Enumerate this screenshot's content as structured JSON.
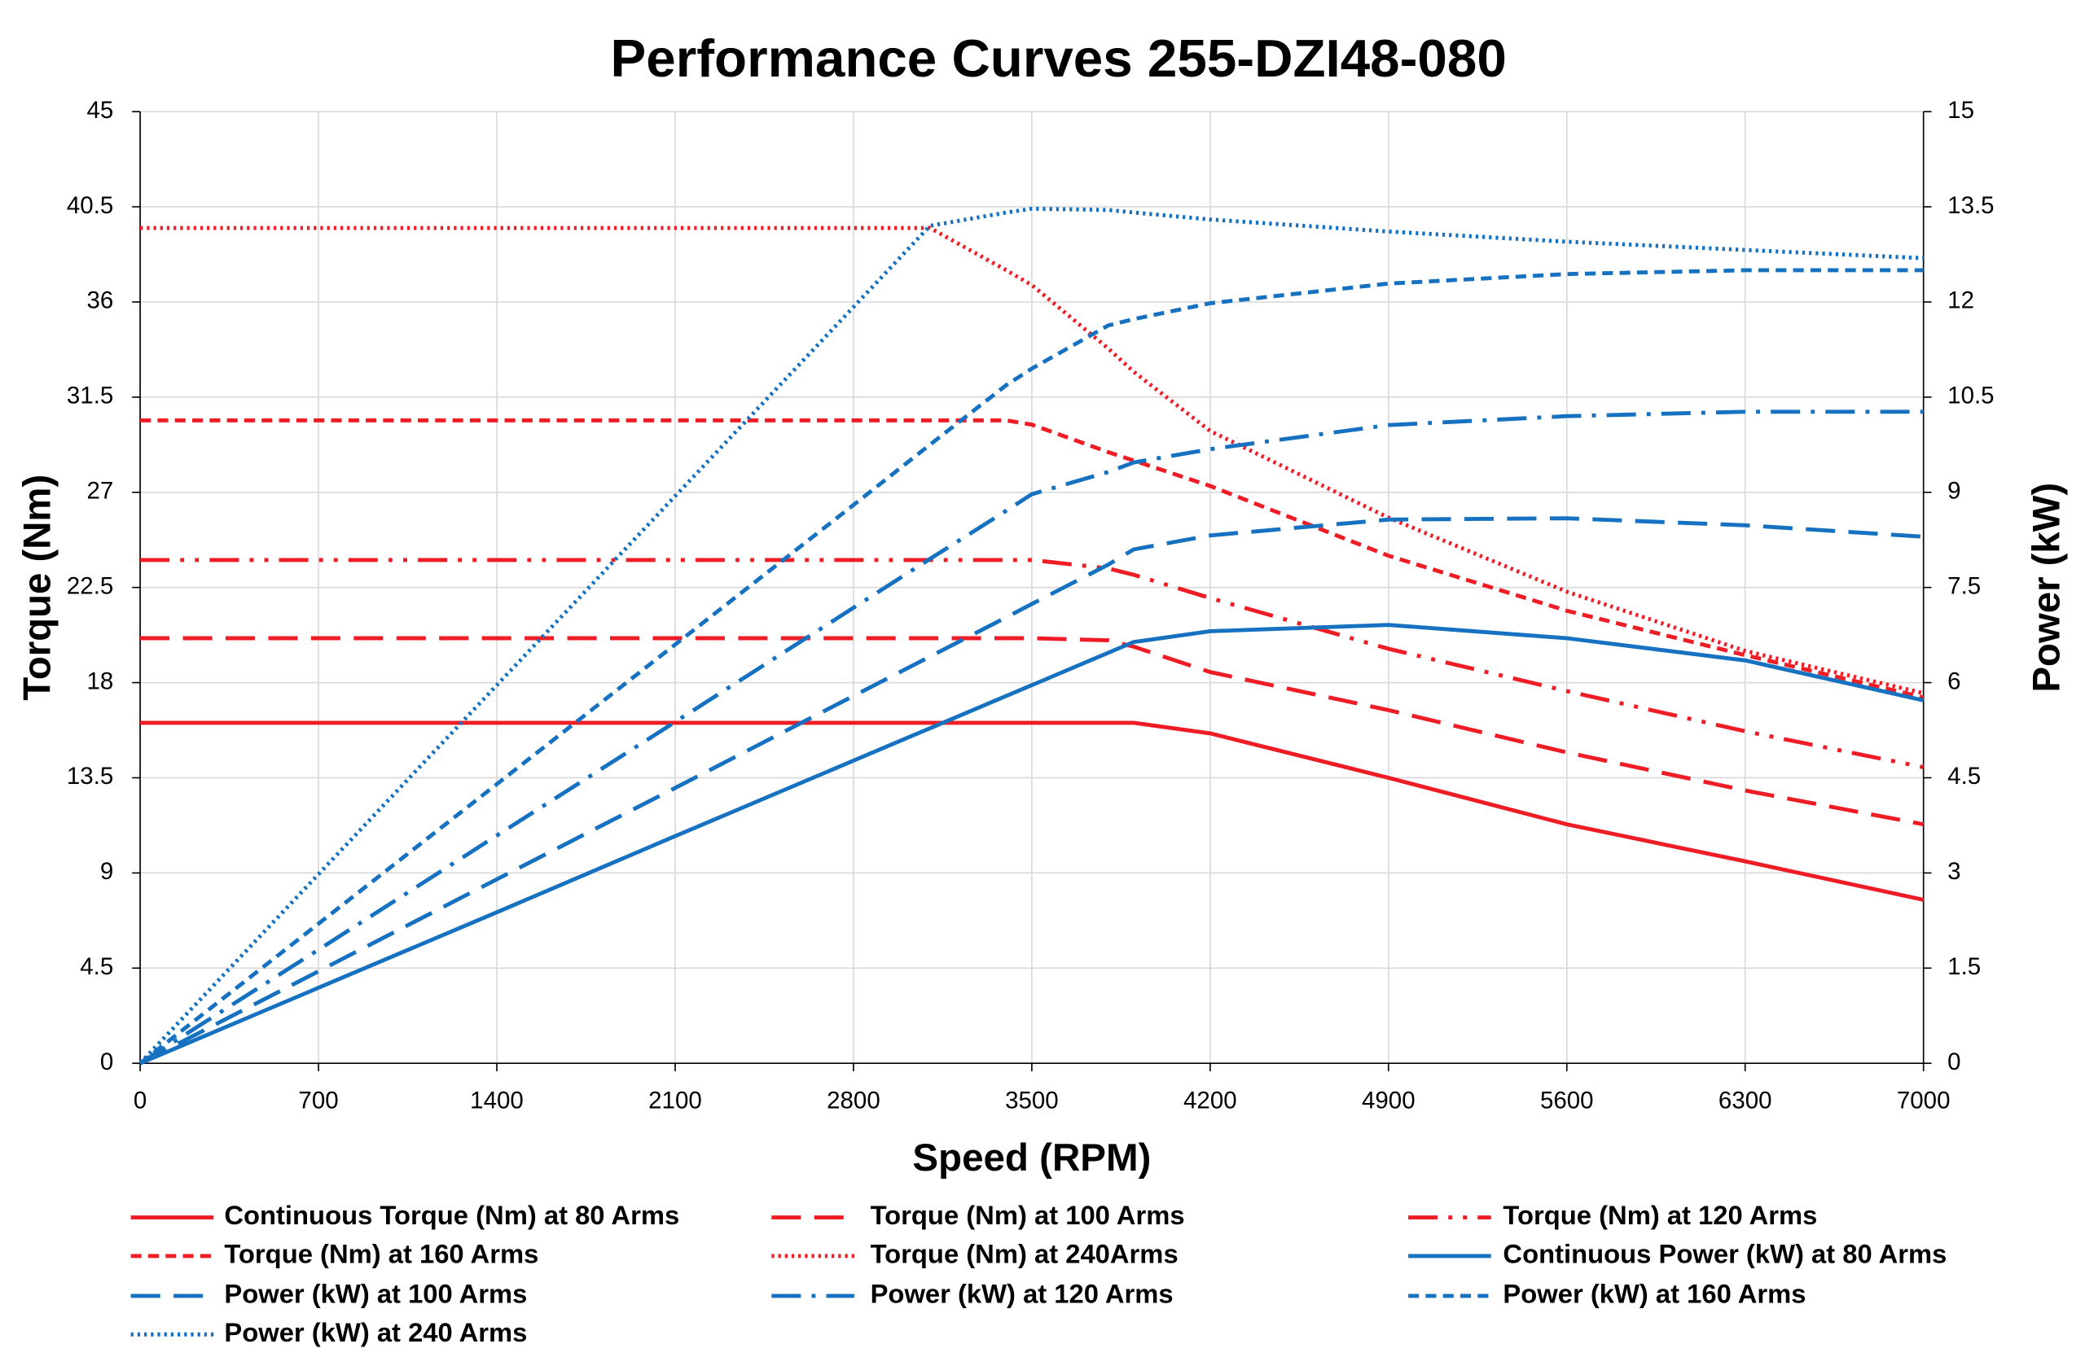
{
  "chart_data": {
    "type": "line",
    "title": "Performance Curves 255-DZI48-080",
    "x_label": "Speed (RPM)",
    "y_label": "Torque (Nm)",
    "y2_label": "Power (kW)",
    "x": [
      0,
      700,
      1400,
      2100,
      2800,
      3100,
      3400,
      3500,
      3800,
      3900,
      4200,
      4900,
      5600,
      6300,
      7000
    ],
    "xlim": [
      0,
      7000
    ],
    "xticks": [
      0,
      700,
      1400,
      2100,
      2800,
      3500,
      4200,
      4900,
      5600,
      6300,
      7000
    ],
    "ylim": [
      0,
      45
    ],
    "yticks": [
      0,
      4.5,
      9,
      13.5,
      18,
      22.5,
      27,
      31.5,
      36,
      40.5,
      45
    ],
    "y2lim": [
      0,
      15
    ],
    "y2ticks": [
      0,
      1.5,
      3,
      4.5,
      6,
      7.5,
      9,
      10.5,
      12,
      13.5,
      15
    ],
    "grid": true,
    "series": [
      {
        "name": "Continuous Torque (Nm) at 80 Arms",
        "color": "#ee1c25",
        "style": "solid",
        "values": [
          16.1,
          16.1,
          16.1,
          16.1,
          16.1,
          16.1,
          16.1,
          16.1,
          16.1,
          16.1,
          15.6,
          13.5,
          11.3,
          9.55,
          7.73
        ]
      },
      {
        "name": "Torque (Nm) at 100 Arms",
        "color": "#ee1c25",
        "style": "dash",
        "values": [
          20.1,
          20.1,
          20.1,
          20.1,
          20.1,
          20.1,
          20.1,
          20.1,
          20.0,
          19.7,
          18.5,
          16.7,
          14.7,
          12.9,
          11.3
        ]
      },
      {
        "name": "Torque (Nm) at 120 Arms",
        "color": "#ee1c25",
        "style": "dashdotdot",
        "values": [
          23.8,
          23.8,
          23.8,
          23.8,
          23.8,
          23.8,
          23.8,
          23.8,
          23.4,
          23.1,
          22.0,
          19.6,
          17.6,
          15.7,
          14.0
        ]
      },
      {
        "name": "Torque (Nm) at 160 Arms",
        "color": "#ee1c25",
        "style": "shortdash",
        "values": [
          30.4,
          30.4,
          30.4,
          30.4,
          30.4,
          30.4,
          30.4,
          30.2,
          28.9,
          28.5,
          27.3,
          24.0,
          21.4,
          19.3,
          17.3
        ]
      },
      {
        "name": "Torque (Nm) at 240Arms",
        "color": "#ee1c25",
        "style": "dot",
        "values": [
          39.5,
          39.5,
          39.5,
          39.5,
          39.5,
          39.5,
          37.5,
          36.8,
          33.8,
          32.7,
          29.9,
          25.8,
          22.3,
          19.5,
          17.5
        ]
      },
      {
        "name": "Continuous Power (kW) at 80 Arms",
        "color": "#1672c0",
        "style": "solid",
        "axis": "y2",
        "values": [
          0,
          1.19,
          2.38,
          3.58,
          4.77,
          5.28,
          5.79,
          5.96,
          6.47,
          6.64,
          6.81,
          6.91,
          6.7,
          6.35,
          5.72
        ]
      },
      {
        "name": "Power (kW) at 100 Arms",
        "color": "#1672c0",
        "style": "dash",
        "axis": "y2",
        "values": [
          0,
          1.45,
          2.9,
          4.34,
          5.79,
          6.41,
          7.03,
          7.24,
          7.86,
          8.1,
          8.32,
          8.57,
          8.59,
          8.48,
          8.3
        ]
      },
      {
        "name": "Power (kW) at 120 Arms",
        "color": "#1672c0",
        "style": "dashdot",
        "axis": "y2",
        "values": [
          0,
          1.79,
          3.59,
          5.38,
          7.18,
          7.95,
          8.71,
          8.97,
          9.32,
          9.47,
          9.68,
          10.06,
          10.2,
          10.27,
          10.27
        ]
      },
      {
        "name": "Power (kW) at 160 Arms",
        "color": "#1672c0",
        "style": "shortdash",
        "axis": "y2",
        "values": [
          0,
          2.2,
          4.4,
          6.6,
          8.8,
          9.75,
          10.69,
          10.95,
          11.63,
          11.73,
          11.98,
          12.29,
          12.44,
          12.5,
          12.5
        ]
      },
      {
        "name": "Power (kW) at 240 Arms",
        "color": "#1672c0",
        "style": "dot",
        "axis": "y2",
        "values": [
          0,
          2.98,
          5.96,
          8.94,
          11.92,
          13.2,
          13.41,
          13.47,
          13.45,
          13.41,
          13.3,
          13.11,
          12.95,
          12.82,
          12.69
        ]
      }
    ]
  }
}
